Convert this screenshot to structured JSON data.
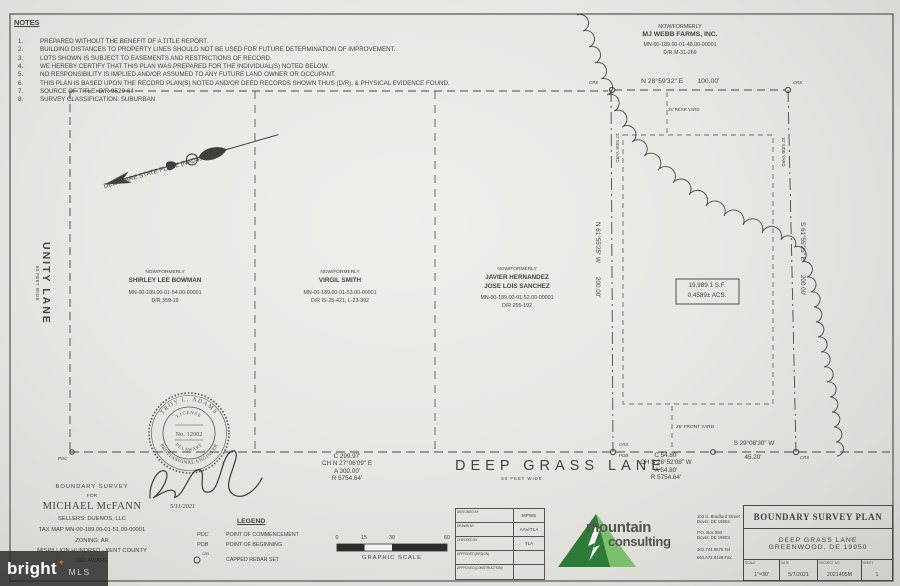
{
  "notes": {
    "title": "NOTES",
    "items": [
      {
        "n": "1.",
        "text": "PREPARED WITHOUT THE BENEFIT OF A TITLE REPORT."
      },
      {
        "n": "2.",
        "text": "BUILDING DISTANCES TO PROPERTY LINES SHOULD NOT BE USED FOR FUTURE DETERMINATION OF IMPROVEMENT."
      },
      {
        "n": "3.",
        "text": "LOTS SHOWN IS SUBJECT TO EASEMENTS AND RESTRICTIONS OF RECORD."
      },
      {
        "n": "4.",
        "text": "WE HEREBY CERTIFY THAT THIS PLAN WAS PREPARED FOR THE INDIVIDUAL(S) NOTED BELOW."
      },
      {
        "n": "5.",
        "text": "NO RESPONSIBILITY IS IMPLIED AND/OR ASSUMED TO ANY FUTURE LAND OWNER OR OCCUPANT."
      },
      {
        "n": "6.",
        "text": "THIS PLAN IS BASED UPON THE RECORD PLAN(S) NOTED AND/OR DEED RECORDS SHOWN THUS (D/R), & PHYSICAL EVIDENCE FOUND."
      },
      {
        "n": "7.",
        "text": "SOURCE OF TITLE: D/R 9529-64"
      },
      {
        "n": "8.",
        "text": "SURVEY CLASSIFICATION: SUBURBAN"
      }
    ]
  },
  "parcels": {
    "webb": {
      "nf": "NOW/FORMERLY",
      "name": "MJ WEBB FARMS, INC.",
      "tax": "MN-00-189.00-01-48.00-00001",
      "dr": "D/R M-31-269"
    },
    "bowman": {
      "nf": "NOW/FORMERLY",
      "name": "SHIRLEY LEE BOWMAN",
      "tax": "MN-00-189.00-01-54.00-00001",
      "dr": "D/R 359-19"
    },
    "smith": {
      "nf": "NOW/FORMERLY",
      "name": "VIRGIL SMITH",
      "tax": "MN-00-189.00-01-53.00-00001",
      "dr": "D/R IS-25-421, L-23-392"
    },
    "sanchez": {
      "nf": "NOW/FORMERLY",
      "name1": "JAVIER HERNANDEZ",
      "name2": "JOSE LOIS SANCHEZ",
      "tax": "MN-00-189.00-01-52.00-00001",
      "dr": "D/R 255-192"
    }
  },
  "lot": {
    "area_line1": "19,989.1 S.F.",
    "area_line2": "0.4589± ACS.",
    "bearing_top": "N 28°59'32\" E",
    "dist_top": "100.00'",
    "bearing_left": "N 61°55'25\" W",
    "dist_left": "200.00'",
    "bearing_right": "S 61°55'25\" E",
    "dist_right": "200.00'",
    "bearing_front": "S 29°08'30\" W",
    "dist_front": "45.20'",
    "rear_yard": "25' REAR YARD",
    "front_yard": "25' FRONT YARD",
    "side_yard": "10' SIDE YARD"
  },
  "curves": {
    "left": {
      "chord_len": "C  299.97'",
      "chord_brg": "CH N 27°06'09\" E",
      "arc": "A  300.00'",
      "radius": "R  5754.64'"
    },
    "right": {
      "chord_len": "C  54.80'",
      "chord_brg": "CH S 28°52'08\" W",
      "arc": "A  54.80'",
      "radius": "R  5754.64'"
    }
  },
  "roads": {
    "unity": {
      "name": "UNITY LANE",
      "width": "50 FEET WIDE"
    },
    "deep_grass": {
      "name": "DEEP GRASS LANE",
      "width": "50 FEET WIDE"
    }
  },
  "north_arrow": {
    "label": "DELAWARE STATE PLANE (NAD83-2011)"
  },
  "seal": {
    "name": "TROY L. ADAMS",
    "license": "LICENSE",
    "number": "No. 12002",
    "state": "DELAWARE",
    "profession": "PROFESSIONAL ENGINEER",
    "date": "5/11/2021"
  },
  "markers": {
    "crs": "CRS",
    "pob": "POB",
    "poc": "POC"
  },
  "survey_info": {
    "line1": "BOUNDARY SURVEY",
    "line2": "FOR",
    "name": "MICHAEL McFANN",
    "sellers": "SELLERS: DUENOS, LLC",
    "tax": "TAX MAP MN-00-189.00-01-51.00-00001",
    "zoning": "ZONING: AR",
    "county": "MISPILLION HUNDRED - KENT COUNTY",
    "state": "DELAWARE"
  },
  "legend": {
    "title": "LEGEND",
    "entries": [
      {
        "abbr": "POC",
        "desc": "POINT OF COMMENCEMENT"
      },
      {
        "abbr": "POB",
        "desc": "POINT OF BEGINNING"
      },
      {
        "abbr": "CRS",
        "desc": "CAPPED REBAR SET"
      }
    ]
  },
  "scale_bar": {
    "ticks": [
      "0",
      "15",
      "30",
      "60"
    ],
    "label": "GRAPHIC SCALE"
  },
  "approval_table": {
    "rows": [
      {
        "label": "DESIGNED BY",
        "value": "MPWS"
      },
      {
        "label": "DRAWN BY",
        "value": "AAV/TLA"
      },
      {
        "label": "CHECKED BY",
        "value": "TLA"
      },
      {
        "label": "APPROVED(DESIGN)",
        "value": ""
      },
      {
        "label": "APPROVED(CONSTRUCTION)",
        "value": ""
      }
    ]
  },
  "company": {
    "name1": "mountain",
    "name2": "consulting",
    "addr1a": "103 S. Bradford Street",
    "addr1b": "Dover, DE 19904",
    "addr2a": "P.O. Box 550",
    "addr2b": "Dover, DE 19903",
    "tel": "302.744.9875 Tel",
    "fax": "660.672.9428 Fax"
  },
  "titleblock": {
    "title": "BOUNDARY SURVEY PLAN",
    "project1": "DEEP GRASS LANE",
    "project2": "GREENWOOD, DE 19950",
    "scale_label": "SCALE",
    "scale": "1\"=30'",
    "date_label": "DATE",
    "date": "5/7/2021",
    "project_label": "PROJECT NO.",
    "project_no": "2021405M",
    "sheet_label": "SHEET",
    "sheet": "1"
  },
  "watermark": {
    "brand": "bright",
    "mark": "✦",
    "suffix": "MLS"
  },
  "colors": {
    "paper": "#e9e7e2",
    "line": "#4a4843",
    "logo_green_dark": "#2f7a36",
    "logo_green_light": "#7bbf6f",
    "logo_text": "#55524c",
    "watermark_bg": "#262626",
    "watermark_accent": "#e0622d"
  }
}
